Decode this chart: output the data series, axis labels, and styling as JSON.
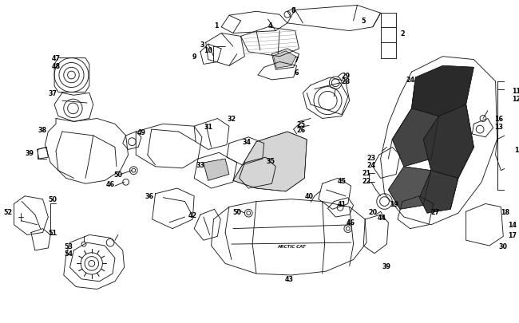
{
  "bg_color": "#ffffff",
  "line_color": "#1a1a1a",
  "fig_width": 6.5,
  "fig_height": 4.06,
  "dpi": 100,
  "lw": 0.65,
  "fs": 5.8
}
